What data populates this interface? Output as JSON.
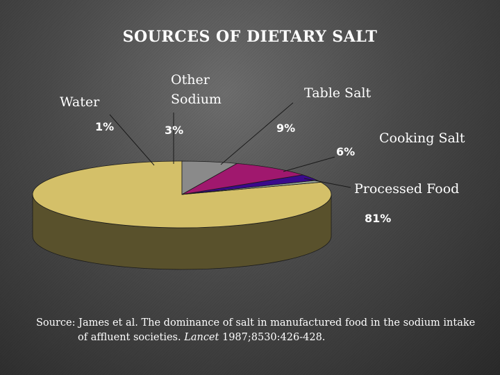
{
  "title": "SOURCES OF DIETARY SALT",
  "chart_data": {
    "type": "pie",
    "title": "SOURCES OF DIETARY SALT",
    "slices": [
      {
        "label": "Processed Food",
        "value": 81,
        "pct_label": "81%",
        "color": "#d4c069"
      },
      {
        "label": "Water",
        "value": 1,
        "pct_label": "1%",
        "color": "#9aa99a"
      },
      {
        "label": "Other Sodium",
        "label_lines": [
          "Other",
          "Sodium"
        ],
        "value": 3,
        "pct_label": "3%",
        "color": "#3a0a8c"
      },
      {
        "label": "Table Salt",
        "value": 9,
        "pct_label": "9%",
        "color": "#a0186e"
      },
      {
        "label": "Cooking Salt",
        "value": 6,
        "pct_label": "6%",
        "color": "#8a8a8a"
      }
    ]
  },
  "source": {
    "line1": "Source: James et al. The dominance of salt in manufactured food in the sodium intake",
    "line2_pre": "of affluent societies. ",
    "line2_journal": "Lancet",
    "line2_post": " 1987;8530:426-428."
  }
}
